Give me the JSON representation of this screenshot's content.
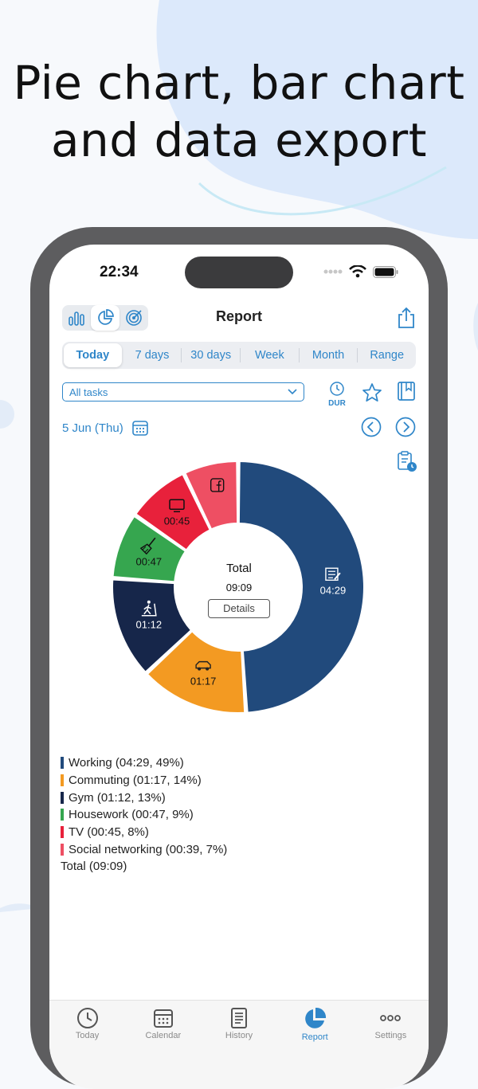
{
  "headline": [
    "Pie chart, bar chart",
    "and data export"
  ],
  "status": {
    "time": "22:34"
  },
  "header": {
    "title": "Report"
  },
  "periods": [
    {
      "label": "Today",
      "active": true
    },
    {
      "label": "7 days"
    },
    {
      "label": "30 days"
    },
    {
      "label": "Week"
    },
    {
      "label": "Month"
    },
    {
      "label": "Range"
    }
  ],
  "filter": {
    "value": "All tasks"
  },
  "dur_label": "DUR",
  "date": "5 Jun (Thu)",
  "center": {
    "label": "Total",
    "value": "09:09",
    "details_button": "Details"
  },
  "chart_data": {
    "type": "pie",
    "categories": [
      "Working",
      "Commuting",
      "Gym",
      "Housework",
      "TV",
      "Social networking"
    ],
    "values": [
      269,
      77,
      72,
      47,
      45,
      39
    ],
    "value_labels": [
      "04:29",
      "01:17",
      "01:12",
      "00:47",
      "00:45",
      "00:39"
    ],
    "colors": [
      "#214a7c",
      "#f39a22",
      "#16264a",
      "#36a64f",
      "#e8213b",
      "#ee4f63"
    ],
    "icons": [
      "document-edit-icon",
      "car-icon",
      "treadmill-icon",
      "broom-icon",
      "tv-icon",
      "facebook-icon"
    ]
  },
  "legend": [
    {
      "text": "Working (04:29, 49%)",
      "color": "#214a7c"
    },
    {
      "text": "Commuting (01:17, 14%)",
      "color": "#f39a22"
    },
    {
      "text": "Gym (01:12, 13%)",
      "color": "#16264a"
    },
    {
      "text": "Housework (00:47, 9%)",
      "color": "#36a64f"
    },
    {
      "text": "TV (00:45, 8%)",
      "color": "#e8213b"
    },
    {
      "text": "Social networking (00:39, 7%)",
      "color": "#ee4f63"
    }
  ],
  "legend_total": "Total (09:09)",
  "tabs": [
    {
      "label": "Today",
      "icon": "clock-icon"
    },
    {
      "label": "Calendar",
      "icon": "calendar-icon"
    },
    {
      "label": "History",
      "icon": "list-icon"
    },
    {
      "label": "Report",
      "icon": "pie-chart-icon",
      "active": true
    },
    {
      "label": "Settings",
      "icon": "more-icon"
    }
  ]
}
